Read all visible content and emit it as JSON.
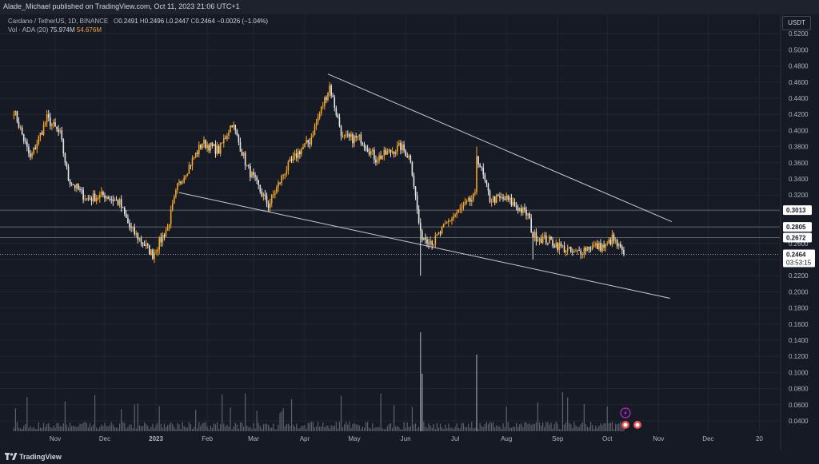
{
  "publisher_line": "Alade_Michael published on TradingView.com, Oct 11, 2023 21:06 UTC+1",
  "legend": {
    "symbol": "Cardano / TetherUS, 1D, BINANCE",
    "ohlc": {
      "o_label": "O",
      "o": "0.2491",
      "h_label": "H",
      "h": "0.2496",
      "l_label": "L",
      "l": "0.2447",
      "c_label": "C",
      "c": "0.2464",
      "change": "−0.0026 (−1.04%)"
    },
    "vol_label": "Vol · ADA (20)",
    "vol_value": "75.974M",
    "vol_ma": "54.676M"
  },
  "currency_button": "USDT",
  "footer_brand": "TradingView",
  "colors": {
    "background": "#161a25",
    "up": "#f5a623",
    "down": "#e6e6e6",
    "grid": "#222631",
    "trendline": "#c9cbd1",
    "level": "#5d606b",
    "axis_text": "#b2b5be",
    "badge_bg": "#ffffff",
    "badge_text": "#131722",
    "event_icon": "#9c27b0",
    "volume": "#6a6d78"
  },
  "chart_data": {
    "type": "candlestick",
    "symbol": "ADA/USDT",
    "interval": "1D",
    "yaxis": {
      "min": 0.0,
      "max": 0.52,
      "ticks": [
        "0.5200",
        "0.5000",
        "0.4800",
        "0.4600",
        "0.4400",
        "0.4200",
        "0.4000",
        "0.3800",
        "0.3600",
        "0.3400",
        "0.3200",
        "0.3000",
        "0.2800",
        "0.2600",
        "0.2400",
        "0.2200",
        "0.2000",
        "0.1800",
        "0.1600",
        "0.1400",
        "0.1200",
        "0.1000",
        "0.0800",
        "0.0600",
        "0.0400"
      ]
    },
    "xaxis_labels": [
      "Nov",
      "Dec",
      "2023",
      "Feb",
      "Mar",
      "Apr",
      "May",
      "Jun",
      "Jul",
      "Aug",
      "Sep",
      "Oct",
      "Nov",
      "Dec",
      "20"
    ],
    "price_anchors": [
      {
        "date": "2022-10-07",
        "close": 0.425
      },
      {
        "date": "2022-10-17",
        "close": 0.365
      },
      {
        "date": "2022-10-27",
        "close": 0.415
      },
      {
        "date": "2022-11-04",
        "close": 0.395
      },
      {
        "date": "2022-11-09",
        "close": 0.34
      },
      {
        "date": "2022-11-20",
        "close": 0.315
      },
      {
        "date": "2022-12-01",
        "close": 0.32
      },
      {
        "date": "2022-12-10",
        "close": 0.31
      },
      {
        "date": "2022-12-16",
        "close": 0.28
      },
      {
        "date": "2022-12-30",
        "close": 0.246
      },
      {
        "date": "2023-01-08",
        "close": 0.28
      },
      {
        "date": "2023-01-14",
        "close": 0.33
      },
      {
        "date": "2023-01-29",
        "close": 0.385
      },
      {
        "date": "2023-02-08",
        "close": 0.375
      },
      {
        "date": "2023-02-16",
        "close": 0.41
      },
      {
        "date": "2023-02-25",
        "close": 0.355
      },
      {
        "date": "2023-03-10",
        "close": 0.307
      },
      {
        "date": "2023-03-20",
        "close": 0.35
      },
      {
        "date": "2023-03-29",
        "close": 0.375
      },
      {
        "date": "2023-04-04",
        "close": 0.387
      },
      {
        "date": "2023-04-16",
        "close": 0.455
      },
      {
        "date": "2023-04-24",
        "close": 0.39
      },
      {
        "date": "2023-05-05",
        "close": 0.39
      },
      {
        "date": "2023-05-14",
        "close": 0.365
      },
      {
        "date": "2023-05-29",
        "close": 0.38
      },
      {
        "date": "2023-06-04",
        "close": 0.365
      },
      {
        "date": "2023-06-10",
        "close": 0.27
      },
      {
        "date": "2023-06-18",
        "close": 0.262
      },
      {
        "date": "2023-06-28",
        "close": 0.29
      },
      {
        "date": "2023-07-13",
        "close": 0.318
      },
      {
        "date": "2023-07-14",
        "close": 0.37
      },
      {
        "date": "2023-07-22",
        "close": 0.315
      },
      {
        "date": "2023-08-01",
        "close": 0.315
      },
      {
        "date": "2023-08-14",
        "close": 0.295
      },
      {
        "date": "2023-08-17",
        "close": 0.27
      },
      {
        "date": "2023-08-27",
        "close": 0.263
      },
      {
        "date": "2023-09-11",
        "close": 0.247
      },
      {
        "date": "2023-09-20",
        "close": 0.256
      },
      {
        "date": "2023-09-30",
        "close": 0.256
      },
      {
        "date": "2023-10-04",
        "close": 0.266
      },
      {
        "date": "2023-10-11",
        "close": 0.2464
      }
    ],
    "spikes": [
      {
        "date": "2023-06-10",
        "low": 0.22
      },
      {
        "date": "2023-07-14",
        "high": 0.38
      },
      {
        "date": "2023-04-16",
        "high": 0.46
      },
      {
        "date": "2023-01-14",
        "high": 0.335
      },
      {
        "date": "2023-08-17",
        "low": 0.24
      }
    ],
    "volume_spikes": [
      {
        "date": "2023-06-10",
        "value": 0.155
      },
      {
        "date": "2023-07-14",
        "value": 0.12
      },
      {
        "date": "2023-06-11",
        "value": 0.09
      }
    ],
    "trendlines": [
      {
        "from": {
          "date": "2023-04-15",
          "price": 0.47
        },
        "to": {
          "date": "2023-11-09",
          "price": 0.287
        }
      },
      {
        "from": {
          "date": "2023-01-15",
          "price": 0.323
        },
        "to": {
          "date": "2023-11-08",
          "price": 0.192
        }
      }
    ],
    "price_levels": [
      {
        "price": 0.3013,
        "label": "0.3013"
      },
      {
        "price": 0.2805,
        "label": "0.2805"
      },
      {
        "price": 0.2672,
        "label": "0.2672"
      }
    ],
    "hidden_tick_label": "0.2800",
    "last_price": {
      "price": 0.2464,
      "label": "0.2464",
      "countdown": "03:53:15"
    }
  }
}
